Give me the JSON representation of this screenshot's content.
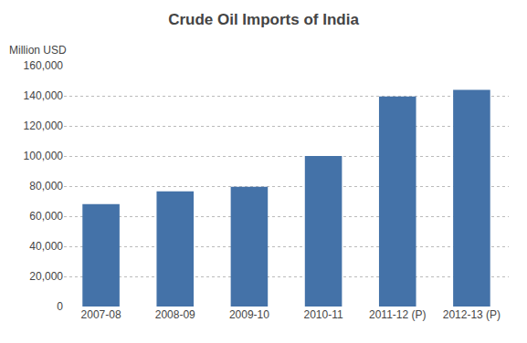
{
  "chart_data": {
    "type": "bar",
    "title": "Crude Oil Imports of India",
    "annotation": "Million USD",
    "categories": [
      "2007-08",
      "2008-09",
      "2009-10",
      "2010-11",
      "2011-12 (P)",
      "2012-13 (P)"
    ],
    "values": [
      68000,
      76500,
      79500,
      100000,
      139500,
      144000
    ],
    "color": "#4472a8",
    "ylim": [
      0,
      160000
    ],
    "yticks": [
      0,
      {
        "value": 20000,
        "label": "20,000"
      },
      {
        "value": 40000,
        "label": "40,000"
      },
      {
        "value": 60000,
        "label": "60,000"
      },
      {
        "value": 80000,
        "label": "80,000"
      },
      {
        "value": 100000,
        "label": "100,000"
      },
      {
        "value": 120000,
        "label": "120,000"
      },
      {
        "value": 140000,
        "label": "140,000"
      },
      {
        "value": 160000,
        "label": "160,000"
      }
    ],
    "grid": true
  }
}
